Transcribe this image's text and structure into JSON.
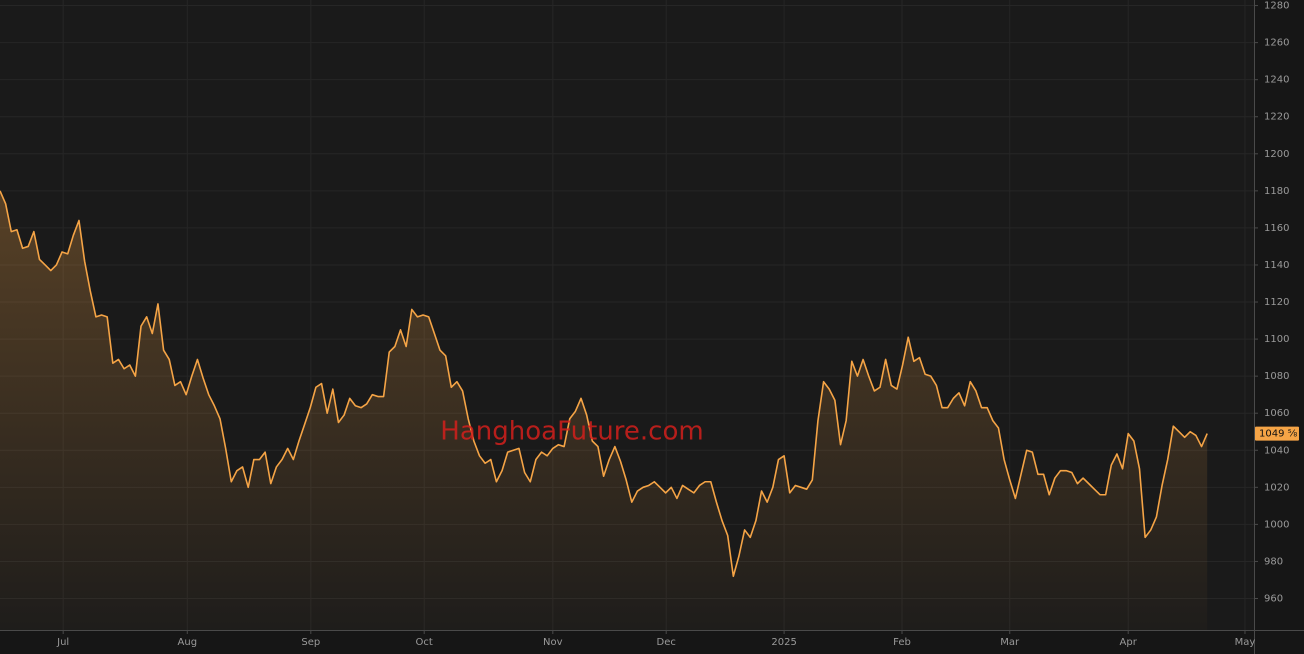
{
  "chart_data": {
    "type": "line",
    "watermark": "HanghoaFuture.com",
    "last_price_label": "1049 ⅝",
    "color": "#f5a446",
    "grid": true,
    "xlim": [
      0,
      222.3
    ],
    "ylim": [
      943,
      1283
    ],
    "xticks": [
      {
        "value": 11.2,
        "label": "Jul"
      },
      {
        "value": 33.2,
        "label": "Aug"
      },
      {
        "value": 55.1,
        "label": "Sep"
      },
      {
        "value": 75.2,
        "label": "Oct"
      },
      {
        "value": 98.0,
        "label": "Nov"
      },
      {
        "value": 118.1,
        "label": "Dec"
      },
      {
        "value": 139.0,
        "label": "2025"
      },
      {
        "value": 159.9,
        "label": "Feb"
      },
      {
        "value": 179.0,
        "label": "Mar"
      },
      {
        "value": 200.0,
        "label": "Apr"
      },
      {
        "value": 220.7,
        "label": "May"
      }
    ],
    "yticks": [
      960,
      980,
      1000,
      1020,
      1040,
      1060,
      1080,
      1100,
      1120,
      1140,
      1160,
      1180,
      1200,
      1220,
      1240,
      1260,
      1280
    ],
    "values": [
      1180,
      1173,
      1158,
      1159,
      1149,
      1150,
      1158,
      1143,
      1140,
      1137,
      1140,
      1147,
      1146,
      1156,
      1164,
      1142,
      1126,
      1112,
      1113,
      1112,
      1087,
      1089,
      1084,
      1086,
      1080,
      1107,
      1112,
      1103,
      1119,
      1094,
      1089,
      1075,
      1077,
      1070,
      1080,
      1089,
      1079,
      1070,
      1064,
      1057,
      1041,
      1023,
      1029,
      1031,
      1020,
      1035,
      1035,
      1039,
      1022,
      1031,
      1035,
      1041,
      1035,
      1045,
      1054,
      1063,
      1074,
      1076,
      1060,
      1073,
      1055,
      1059,
      1068,
      1064,
      1063,
      1065,
      1070,
      1069,
      1069,
      1093,
      1096,
      1105,
      1096,
      1116,
      1112,
      1113,
      1112,
      1103,
      1094,
      1091,
      1074,
      1077,
      1072,
      1057,
      1045,
      1037,
      1033,
      1035,
      1023,
      1029,
      1039,
      1040,
      1041,
      1028,
      1023,
      1035,
      1039,
      1037,
      1041,
      1043,
      1042,
      1057,
      1061,
      1068,
      1059,
      1045,
      1042,
      1026,
      1035,
      1042,
      1034,
      1024,
      1012,
      1018,
      1020,
      1021,
      1023,
      1020,
      1017,
      1020,
      1014,
      1021,
      1019,
      1017,
      1021,
      1023,
      1023,
      1012,
      1002,
      994,
      972,
      983,
      997,
      993,
      1002,
      1018,
      1012,
      1020,
      1035,
      1037,
      1017,
      1021,
      1020,
      1019,
      1024,
      1056,
      1077,
      1073,
      1067,
      1043,
      1056,
      1088,
      1080,
      1089,
      1080,
      1072,
      1074,
      1089,
      1075,
      1073,
      1086,
      1101,
      1088,
      1090,
      1081,
      1080,
      1075,
      1063,
      1063,
      1068,
      1071,
      1064,
      1077,
      1072,
      1063,
      1063,
      1056,
      1052,
      1035,
      1024,
      1014,
      1027,
      1040,
      1039,
      1027,
      1027,
      1016,
      1025,
      1029,
      1029,
      1028,
      1022,
      1025,
      1022,
      1019,
      1016,
      1016,
      1032,
      1038,
      1030,
      1049,
      1045,
      1030,
      993,
      997,
      1004,
      1021,
      1035,
      1053,
      1050,
      1047,
      1050,
      1048,
      1042,
      1049
    ]
  }
}
